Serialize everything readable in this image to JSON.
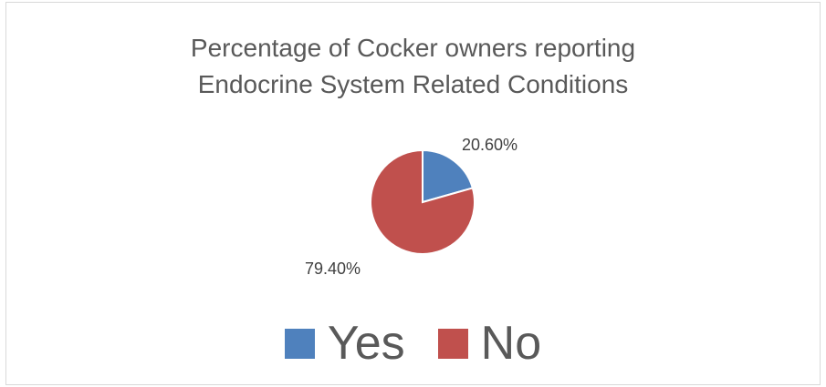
{
  "chart_data": {
    "type": "pie",
    "title_lines": [
      "Percentage of Cocker owners reporting",
      "Endocrine System Related Conditions"
    ],
    "categories": [
      "Yes",
      "No"
    ],
    "values": [
      20.6,
      79.4
    ],
    "data_labels": [
      "20.60%",
      "79.40%"
    ],
    "colors": [
      "#4f81bd",
      "#c0504d"
    ],
    "legend_position": "bottom"
  }
}
